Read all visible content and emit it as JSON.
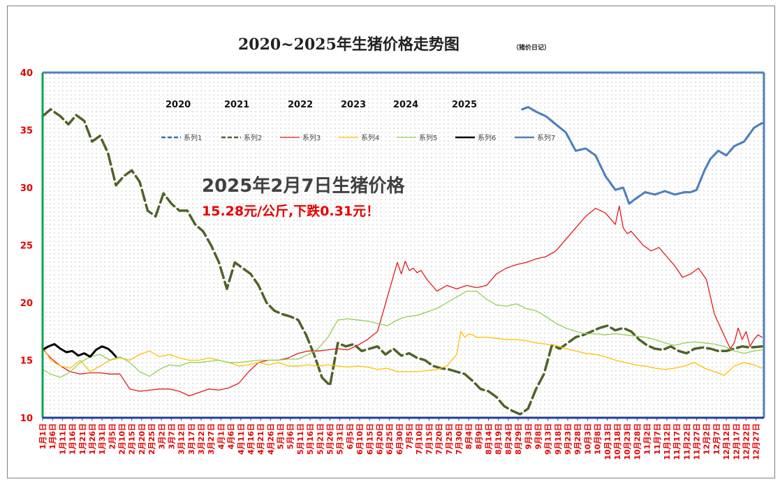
{
  "title": "2020~2025年生猪价格走势图",
  "subtitle": "（猪价日记）",
  "annotation": {
    "line1": "2025年2月7日生猪价格",
    "line2": "15.28元/公斤,下跌0.31元！",
    "line2_color": "#e60000"
  },
  "year_labels": [
    "2020",
    "2021",
    "2022",
    "2023",
    "2024",
    "2025"
  ],
  "chart_data": {
    "type": "line",
    "ylim": [
      10,
      40
    ],
    "yticks": [
      10,
      15,
      20,
      25,
      30,
      35,
      40
    ],
    "grid": "dotted",
    "legend_position": "top",
    "x_labels": [
      "1月1日",
      "1月6日",
      "1月11日",
      "1月16日",
      "1月21日",
      "1月26日",
      "1月31日",
      "2月5日",
      "2月10日",
      "2月15日",
      "2月20日",
      "2月25日",
      "3月2日",
      "3月7日",
      "3月12日",
      "3月17日",
      "3月22日",
      "3月27日",
      "4月1日",
      "4月6日",
      "4月11日",
      "4月16日",
      "4月21日",
      "4月26日",
      "5月1日",
      "5月6日",
      "5月11日",
      "5月16日",
      "5月21日",
      "5月26日",
      "5月31日",
      "6月5日",
      "6月10日",
      "6月15日",
      "6月20日",
      "6月25日",
      "6月30日",
      "7月5日",
      "7月10日",
      "7月15日",
      "7月20日",
      "7月25日",
      "7月30日",
      "8月4日",
      "8月9日",
      "8月14日",
      "8月19日",
      "8月24日",
      "8月29日",
      "9月3日",
      "9月8日",
      "9月13日",
      "9月18日",
      "9月23日",
      "9月28日",
      "10月3日",
      "10月8日",
      "10月13日",
      "10月18日",
      "10月23日",
      "10月28日",
      "11月2日",
      "11月7日",
      "11月12日",
      "11月17日",
      "11月22日",
      "11月27日",
      "12月2日",
      "12月7日",
      "12月12日",
      "12月17日",
      "12月22日",
      "12月27日"
    ],
    "x_days": [
      1,
      6,
      11,
      16,
      21,
      26,
      31,
      36,
      41,
      46,
      51,
      56,
      61,
      66,
      71,
      76,
      81,
      86,
      91,
      96,
      101,
      106,
      111,
      116,
      121,
      126,
      131,
      136,
      141,
      146,
      151,
      156,
      161,
      166,
      171,
      176,
      181,
      186,
      191,
      196,
      201,
      206,
      211,
      216,
      221,
      226,
      231,
      236,
      241,
      246,
      251,
      256,
      261,
      266,
      271,
      276,
      281,
      286,
      291,
      296,
      301,
      306,
      311,
      316,
      321,
      326,
      331,
      336,
      341,
      346,
      351,
      356,
      361
    ],
    "series": [
      {
        "name": "系列1",
        "color": "#2e75b6",
        "width": 3,
        "dash": "10,5",
        "x": [
          243,
          246,
          250,
          255,
          260,
          265,
          270,
          275,
          280,
          285,
          290,
          294,
          297,
          300,
          305,
          310,
          315,
          320,
          325,
          328,
          331,
          335,
          338,
          342,
          346,
          350,
          355,
          360,
          364
        ],
        "y": [
          36.8,
          37.0,
          36.6,
          36.2,
          35.5,
          34.8,
          33.2,
          33.4,
          32.8,
          31.0,
          29.8,
          30.0,
          28.6,
          29.0,
          29.6,
          29.4,
          29.7,
          29.4,
          29.6,
          29.6,
          29.8,
          31.5,
          32.5,
          33.2,
          32.8,
          33.6,
          34.0,
          35.2,
          35.6
        ]
      },
      {
        "name": "系列2",
        "color": "#4f6228",
        "width": 3.5,
        "dash": "16,6",
        "x": [
          1,
          5,
          10,
          14,
          18,
          22,
          26,
          30,
          34,
          38,
          42,
          46,
          50,
          54,
          58,
          62,
          66,
          70,
          74,
          78,
          82,
          86,
          90,
          94,
          98,
          102,
          106,
          110,
          114,
          118,
          122,
          126,
          130,
          134,
          138,
          142,
          146,
          150,
          154,
          158,
          162,
          166,
          170,
          174,
          178,
          182,
          186,
          190,
          194,
          198,
          202,
          206,
          210,
          214,
          218,
          222,
          226,
          230,
          234,
          238,
          242,
          246,
          250,
          254,
          258,
          262,
          266,
          270,
          274,
          278,
          282,
          286,
          290,
          294,
          298,
          302,
          306,
          310,
          314,
          318,
          322,
          326,
          330,
          334,
          338,
          342,
          346,
          350,
          354,
          358,
          364
        ],
        "y": [
          36.2,
          36.8,
          36.2,
          35.5,
          36.3,
          35.8,
          34.0,
          34.5,
          33.0,
          30.2,
          31.0,
          31.5,
          30.5,
          28.0,
          27.5,
          29.5,
          28.6,
          28.0,
          28.0,
          26.8,
          26.2,
          25.0,
          23.5,
          21.2,
          23.5,
          23.0,
          22.5,
          21.5,
          20.0,
          19.3,
          19.0,
          18.8,
          18.5,
          17.2,
          15.5,
          13.5,
          12.8,
          16.5,
          16.2,
          16.4,
          15.8,
          16.0,
          16.2,
          15.5,
          16.0,
          15.4,
          15.6,
          15.2,
          15.0,
          14.5,
          14.3,
          14.2,
          14.0,
          13.8,
          13.2,
          12.5,
          12.3,
          11.8,
          11.0,
          10.6,
          10.3,
          10.8,
          12.5,
          13.8,
          16.3,
          16.0,
          16.5,
          17.0,
          17.2,
          17.5,
          17.8,
          18.0,
          17.6,
          17.8,
          17.5,
          16.8,
          16.3,
          16.0,
          15.9,
          16.2,
          15.8,
          15.6,
          16.0,
          16.1,
          16.0,
          15.8,
          15.8,
          16.0,
          16.2,
          16.1,
          16.2
        ]
      },
      {
        "name": "系列3",
        "color": "#e31a1c",
        "width": 1.3,
        "dash": "",
        "x": [
          1,
          5,
          10,
          15,
          20,
          25,
          30,
          35,
          40,
          45,
          50,
          55,
          60,
          65,
          70,
          75,
          80,
          85,
          90,
          95,
          100,
          105,
          110,
          115,
          120,
          125,
          130,
          135,
          140,
          145,
          150,
          155,
          160,
          165,
          170,
          175,
          180,
          182,
          184,
          186,
          188,
          190,
          192,
          195,
          200,
          205,
          210,
          215,
          220,
          225,
          230,
          235,
          240,
          245,
          250,
          255,
          260,
          265,
          270,
          275,
          280,
          285,
          290,
          292,
          294,
          296,
          298,
          300,
          304,
          308,
          312,
          316,
          320,
          324,
          328,
          332,
          336,
          340,
          344,
          348,
          350,
          352,
          354,
          356,
          358,
          360,
          362,
          364
        ],
        "y": [
          16.0,
          15.2,
          14.5,
          14.0,
          13.8,
          13.9,
          13.9,
          13.8,
          13.8,
          12.5,
          12.3,
          12.4,
          12.5,
          12.5,
          12.3,
          11.9,
          12.2,
          12.5,
          12.4,
          12.6,
          13.0,
          14.0,
          14.8,
          15.0,
          15.0,
          15.2,
          15.6,
          15.8,
          15.8,
          15.9,
          16.0,
          15.9,
          16.3,
          16.8,
          17.5,
          20.5,
          23.5,
          22.5,
          23.6,
          22.8,
          23.0,
          22.6,
          22.8,
          22.0,
          21.0,
          21.5,
          21.2,
          21.5,
          21.3,
          21.5,
          22.5,
          23.0,
          23.3,
          23.5,
          23.8,
          24.0,
          24.5,
          25.5,
          26.5,
          27.5,
          28.2,
          27.8,
          26.8,
          28.4,
          26.5,
          26.0,
          26.2,
          25.8,
          25.0,
          24.5,
          24.8,
          24.0,
          23.2,
          22.2,
          22.5,
          23.0,
          22.0,
          19.0,
          17.5,
          16.0,
          16.5,
          17.8,
          16.8,
          17.5,
          16.2,
          16.8,
          17.2,
          17.0
        ]
      },
      {
        "name": "系列4",
        "color": "#ffc000",
        "width": 1.3,
        "dash": "",
        "x": [
          1,
          5,
          10,
          15,
          20,
          25,
          30,
          35,
          40,
          45,
          50,
          55,
          60,
          65,
          70,
          75,
          80,
          85,
          90,
          95,
          100,
          105,
          110,
          115,
          120,
          125,
          130,
          135,
          140,
          145,
          150,
          155,
          160,
          165,
          170,
          175,
          180,
          185,
          190,
          195,
          200,
          205,
          210,
          212,
          214,
          216,
          218,
          220,
          225,
          230,
          235,
          240,
          245,
          250,
          255,
          260,
          265,
          270,
          275,
          280,
          285,
          290,
          295,
          300,
          305,
          310,
          315,
          320,
          325,
          330,
          335,
          340,
          345,
          350,
          355,
          360,
          364
        ],
        "y": [
          16.2,
          15.0,
          14.5,
          14.3,
          15.0,
          14.0,
          14.5,
          15.0,
          15.2,
          15.0,
          15.5,
          15.8,
          15.3,
          15.5,
          15.2,
          15.0,
          15.0,
          15.2,
          15.0,
          14.8,
          14.5,
          14.6,
          14.8,
          14.6,
          14.8,
          14.5,
          14.5,
          14.6,
          14.5,
          14.6,
          14.5,
          14.4,
          14.5,
          14.4,
          14.2,
          14.3,
          14.0,
          14.0,
          14.0,
          14.1,
          14.2,
          14.5,
          15.5,
          17.5,
          17.0,
          17.3,
          17.2,
          17.0,
          17.0,
          16.9,
          16.8,
          16.8,
          16.7,
          16.5,
          16.4,
          16.3,
          16.0,
          15.8,
          15.6,
          15.5,
          15.3,
          15.0,
          14.8,
          14.6,
          14.5,
          14.3,
          14.2,
          14.3,
          14.5,
          14.8,
          14.3,
          14.0,
          13.7,
          14.5,
          14.8,
          14.6,
          14.3
        ]
      },
      {
        "name": "系列5",
        "color": "#92d050",
        "width": 1.3,
        "dash": "",
        "x": [
          1,
          5,
          10,
          15,
          20,
          25,
          30,
          35,
          40,
          45,
          50,
          55,
          60,
          65,
          70,
          75,
          80,
          85,
          90,
          95,
          100,
          105,
          110,
          115,
          120,
          125,
          130,
          135,
          140,
          145,
          150,
          155,
          160,
          165,
          170,
          175,
          180,
          185,
          190,
          195,
          200,
          205,
          210,
          215,
          220,
          225,
          230,
          235,
          240,
          245,
          250,
          255,
          260,
          265,
          270,
          275,
          280,
          285,
          290,
          295,
          300,
          305,
          310,
          315,
          320,
          325,
          330,
          335,
          340,
          345,
          350,
          355,
          360,
          364
        ],
        "y": [
          14.2,
          13.8,
          13.5,
          14.0,
          14.8,
          15.3,
          15.5,
          15.0,
          15.3,
          14.8,
          14.0,
          13.6,
          14.2,
          14.6,
          14.5,
          14.8,
          14.8,
          14.9,
          15.0,
          14.8,
          14.8,
          14.9,
          15.0,
          15.0,
          15.0,
          15.1,
          15.1,
          15.5,
          16.0,
          17.0,
          18.5,
          18.6,
          18.5,
          18.4,
          18.2,
          18.0,
          18.5,
          18.8,
          18.9,
          19.2,
          19.5,
          20.0,
          20.5,
          21.0,
          21.0,
          20.3,
          19.8,
          19.7,
          19.9,
          19.5,
          19.3,
          18.8,
          18.2,
          17.8,
          17.5,
          17.3,
          17.3,
          17.2,
          17.3,
          17.2,
          17.1,
          17.0,
          16.8,
          16.5,
          16.3,
          16.5,
          16.6,
          16.5,
          16.4,
          16.2,
          15.8,
          15.6,
          15.8,
          15.9
        ]
      },
      {
        "name": "系列6",
        "color": "#000000",
        "width": 3,
        "dash": "",
        "x": [
          1,
          4,
          7,
          10,
          13,
          16,
          19,
          22,
          25,
          28,
          31,
          34,
          36,
          38
        ],
        "y": [
          15.9,
          16.2,
          16.4,
          16.0,
          15.7,
          15.8,
          15.4,
          15.6,
          15.3,
          15.9,
          16.2,
          16.0,
          15.7,
          15.3
        ]
      },
      {
        "name": "系列7",
        "color": "#4f81bd",
        "width": 3,
        "dash": "",
        "x": [
          243,
          246,
          250,
          255,
          260,
          265,
          270,
          275,
          280,
          285,
          290,
          294,
          297,
          300,
          305,
          310,
          315,
          320,
          325,
          328,
          331,
          335,
          338,
          342,
          346,
          350,
          355,
          360,
          364
        ],
        "y": [
          36.8,
          37.0,
          36.6,
          36.2,
          35.5,
          34.8,
          33.2,
          33.4,
          32.8,
          31.0,
          29.8,
          30.0,
          28.6,
          29.0,
          29.6,
          29.4,
          29.7,
          29.4,
          29.6,
          29.6,
          29.8,
          31.5,
          32.5,
          33.2,
          32.8,
          33.6,
          34.0,
          35.2,
          35.6
        ]
      }
    ]
  }
}
